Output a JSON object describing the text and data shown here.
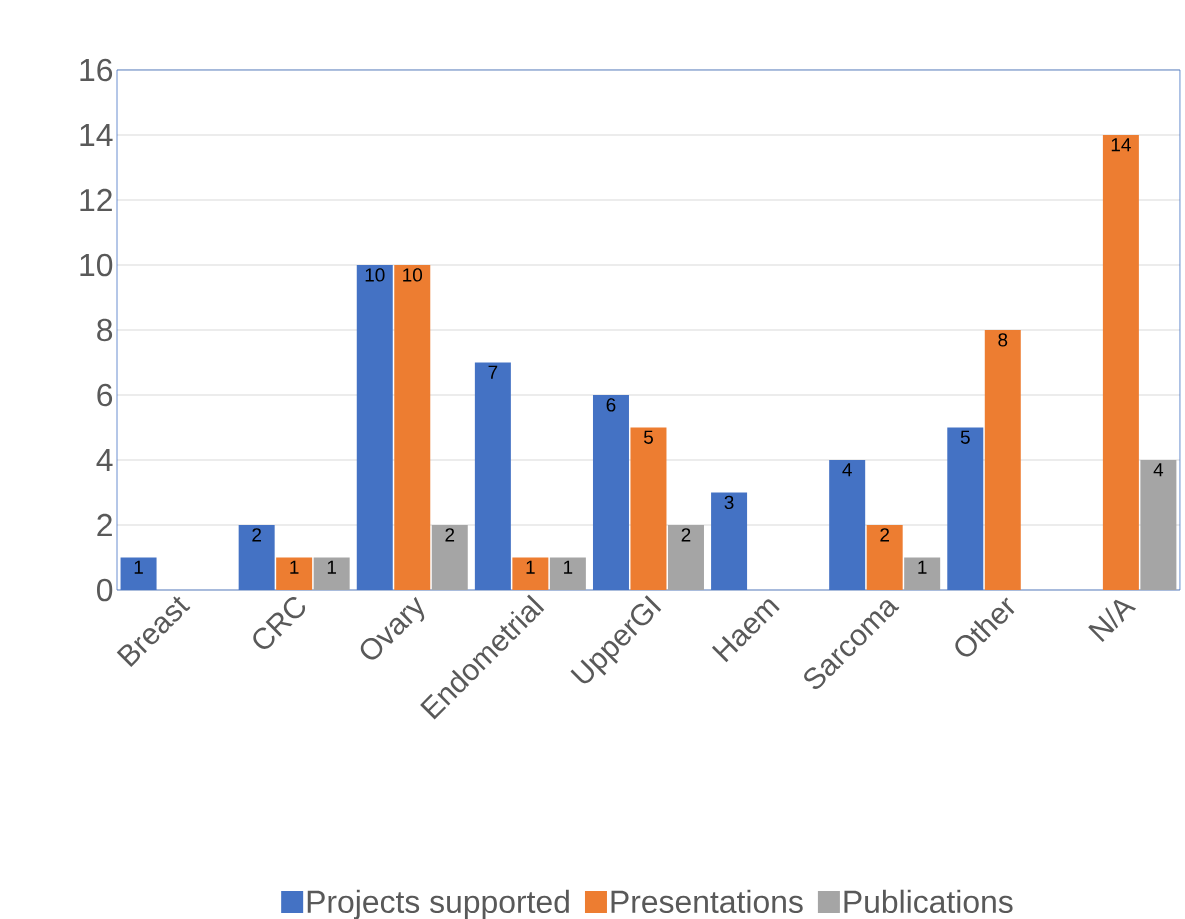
{
  "chart_data": {
    "type": "bar",
    "categories": [
      "Breast",
      "CRC",
      "Ovary",
      "Endometrial",
      "UpperGI",
      "Haem",
      "Sarcoma",
      "Other",
      "N/A"
    ],
    "series": [
      {
        "name": "Projects supported",
        "color": "#4472c4",
        "values": [
          1,
          2,
          10,
          7,
          6,
          3,
          4,
          5,
          0
        ],
        "value_labels": [
          "1",
          "2",
          "10",
          "7",
          "6",
          "3",
          "4",
          "5",
          null
        ]
      },
      {
        "name": "Presentations",
        "color": "#ed7d31",
        "values": [
          0,
          1,
          10,
          1,
          5,
          0,
          2,
          8,
          14
        ],
        "value_labels": [
          null,
          "1",
          "10",
          "1",
          "5",
          null,
          "2",
          "8",
          "14"
        ]
      },
      {
        "name": "Publications",
        "color": "#a5a5a5",
        "values": [
          0,
          1,
          2,
          1,
          2,
          0,
          1,
          0,
          4
        ],
        "value_labels": [
          null,
          "1",
          "2",
          "1",
          "2",
          null,
          "1",
          null,
          "4"
        ]
      }
    ],
    "ylim": [
      0,
      16
    ],
    "yticks": [
      0,
      2,
      4,
      6,
      8,
      10,
      12,
      14,
      16
    ],
    "grid": "y",
    "legend": "bottom"
  }
}
